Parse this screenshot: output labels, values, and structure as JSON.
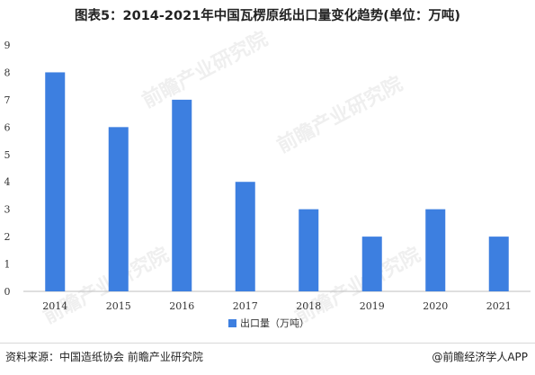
{
  "title": "图表5：2014-2021年中国瓦楞原纸出口量变化趋势(单位：万吨)",
  "legend_label": "出口量（万吨）",
  "source": "资料来源：中国造纸协会 前瞻产业研究院",
  "brand": "@前瞻经济学人APP",
  "watermark": "前瞻产业研究院",
  "bar_color": "#3d7fe0",
  "chart_data": {
    "type": "bar",
    "title": "图表5：2014-2021年中国瓦楞原纸出口量变化趋势(单位：万吨)",
    "categories": [
      "2014",
      "2015",
      "2016",
      "2017",
      "2018",
      "2019",
      "2020",
      "2021"
    ],
    "series": [
      {
        "name": "出口量（万吨）",
        "values": [
          8,
          6,
          7,
          4,
          3,
          2,
          3,
          2
        ]
      }
    ],
    "ylim": [
      0,
      9
    ],
    "yticks": [
      0,
      1,
      2,
      3,
      4,
      5,
      6,
      7,
      8,
      9
    ],
    "grid": false,
    "legend": "bottom-center"
  }
}
